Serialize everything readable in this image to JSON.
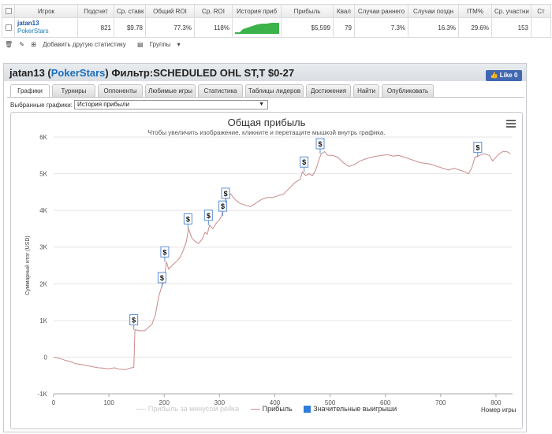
{
  "table": {
    "headers": [
      "Игрок",
      "Подсчет",
      "Ср. ставк",
      "Общий ROI",
      "Ср. ROI",
      "История приб",
      "Прибыль",
      "Квал",
      "Случаи раннего",
      "Случаи поздн",
      "ITM%",
      "Ср. участни",
      "Ст"
    ],
    "row": {
      "player_name": "jatan13",
      "site": "PokerStars",
      "count": "821",
      "avg_stake": "$9.78",
      "total_roi": "77.3%",
      "avg_roi": "118%",
      "profit": "$5,599",
      "qual": "79",
      "early": "7.3%",
      "late": "16.3%",
      "itm": "29.6%",
      "avg_entrants": "153"
    }
  },
  "toolbar": {
    "add_stats": "Добавить другую статистику",
    "groups": "Группы"
  },
  "panel": {
    "player": "jatan13",
    "site": "PokerStars",
    "filter": "Фильтр:SCHEDULED OHL ST,T $0-27",
    "like": "Like 0",
    "close": "×"
  },
  "tabs": [
    "Графики",
    "Турниры",
    "Оппоненты",
    "Любимые игры",
    "Статистика",
    "Таблицы лидеров",
    "Достижения",
    "Найти",
    "Опубликовать"
  ],
  "selector": {
    "label": "Выбранные графики:",
    "value": "История прибыли"
  },
  "chart_data": {
    "type": "line",
    "title": "Общая прибыль",
    "subtitle": "Чтобы увеличить изображение, кликните и перетащите мышкой внутрь графика.",
    "ylabel": "Суммарный итог (USD)",
    "xlabel": "Номер игры",
    "xlim": [
      0,
      830
    ],
    "ylim": [
      -1000,
      6000
    ],
    "x_ticks": [
      "0",
      "100",
      "200",
      "300",
      "400",
      "500",
      "600",
      "700",
      "800"
    ],
    "y_ticks": [
      "-1K",
      "0",
      "1K",
      "2K",
      "3K",
      "4K",
      "5K",
      "6K"
    ],
    "series": [
      {
        "name": "Прибыль",
        "color": "#c98a8a",
        "points": [
          [
            0,
            0
          ],
          [
            10,
            -30
          ],
          [
            20,
            -80
          ],
          [
            30,
            -120
          ],
          [
            40,
            -180
          ],
          [
            50,
            -200
          ],
          [
            60,
            -230
          ],
          [
            70,
            -260
          ],
          [
            80,
            -290
          ],
          [
            90,
            -300
          ],
          [
            100,
            -320
          ],
          [
            110,
            -290
          ],
          [
            120,
            -330
          ],
          [
            130,
            -340
          ],
          [
            138,
            -300
          ],
          [
            145,
            -280
          ],
          [
            147,
            750
          ],
          [
            155,
            720
          ],
          [
            165,
            720
          ],
          [
            172,
            820
          ],
          [
            178,
            900
          ],
          [
            184,
            1150
          ],
          [
            190,
            1650
          ],
          [
            195,
            1900
          ],
          [
            200,
            2100
          ],
          [
            204,
            2600
          ],
          [
            208,
            2400
          ],
          [
            214,
            2500
          ],
          [
            220,
            2580
          ],
          [
            228,
            2700
          ],
          [
            234,
            2900
          ],
          [
            240,
            3150
          ],
          [
            244,
            3500
          ],
          [
            250,
            3250
          ],
          [
            256,
            3150
          ],
          [
            262,
            3100
          ],
          [
            268,
            3200
          ],
          [
            274,
            3400
          ],
          [
            278,
            3350
          ],
          [
            282,
            3600
          ],
          [
            288,
            3500
          ],
          [
            294,
            3650
          ],
          [
            300,
            3750
          ],
          [
            304,
            3850
          ],
          [
            308,
            4200
          ],
          [
            314,
            4350
          ],
          [
            320,
            4450
          ],
          [
            328,
            4300
          ],
          [
            336,
            4200
          ],
          [
            346,
            4150
          ],
          [
            356,
            4100
          ],
          [
            366,
            4200
          ],
          [
            376,
            4300
          ],
          [
            386,
            4350
          ],
          [
            396,
            4350
          ],
          [
            406,
            4400
          ],
          [
            416,
            4450
          ],
          [
            426,
            4600
          ],
          [
            436,
            4750
          ],
          [
            446,
            4850
          ],
          [
            450,
            5050
          ],
          [
            456,
            4950
          ],
          [
            462,
            5000
          ],
          [
            468,
            4950
          ],
          [
            474,
            5100
          ],
          [
            478,
            5300
          ],
          [
            484,
            5550
          ],
          [
            490,
            5600
          ],
          [
            496,
            5500
          ],
          [
            504,
            5500
          ],
          [
            514,
            5450
          ],
          [
            524,
            5300
          ],
          [
            534,
            5200
          ],
          [
            544,
            5250
          ],
          [
            554,
            5350
          ],
          [
            564,
            5400
          ],
          [
            574,
            5450
          ],
          [
            584,
            5480
          ],
          [
            594,
            5500
          ],
          [
            604,
            5520
          ],
          [
            614,
            5480
          ],
          [
            624,
            5500
          ],
          [
            634,
            5450
          ],
          [
            644,
            5400
          ],
          [
            654,
            5350
          ],
          [
            664,
            5300
          ],
          [
            674,
            5280
          ],
          [
            684,
            5250
          ],
          [
            694,
            5200
          ],
          [
            704,
            5150
          ],
          [
            714,
            5100
          ],
          [
            724,
            5150
          ],
          [
            734,
            5100
          ],
          [
            744,
            5050
          ],
          [
            750,
            5000
          ],
          [
            756,
            5150
          ],
          [
            762,
            5450
          ],
          [
            770,
            5500
          ],
          [
            778,
            5550
          ],
          [
            788,
            5500
          ],
          [
            794,
            5350
          ],
          [
            800,
            5450
          ],
          [
            806,
            5550
          ],
          [
            812,
            5600
          ],
          [
            820,
            5600
          ],
          [
            826,
            5550
          ]
        ]
      },
      {
        "name": "Прибыль за минусом рейка",
        "color": "#d8d8d8",
        "points": []
      }
    ],
    "markers": {
      "name": "Значительные выигрыши",
      "label": "$",
      "points": [
        [
          145,
          750
        ],
        [
          196,
          1900
        ],
        [
          201,
          2600
        ],
        [
          243,
          3500
        ],
        [
          280,
          3600
        ],
        [
          306,
          3850
        ],
        [
          311,
          4200
        ],
        [
          453,
          5050
        ],
        [
          482,
          5550
        ],
        [
          767,
          5450
        ]
      ]
    }
  },
  "icons": {
    "checkbox": "checkbox-icon",
    "trash": "trash-icon",
    "add": "add-icon",
    "groups": "groups-icon",
    "menu": "hamburger-menu-icon",
    "facebook": "facebook-like-icon"
  }
}
